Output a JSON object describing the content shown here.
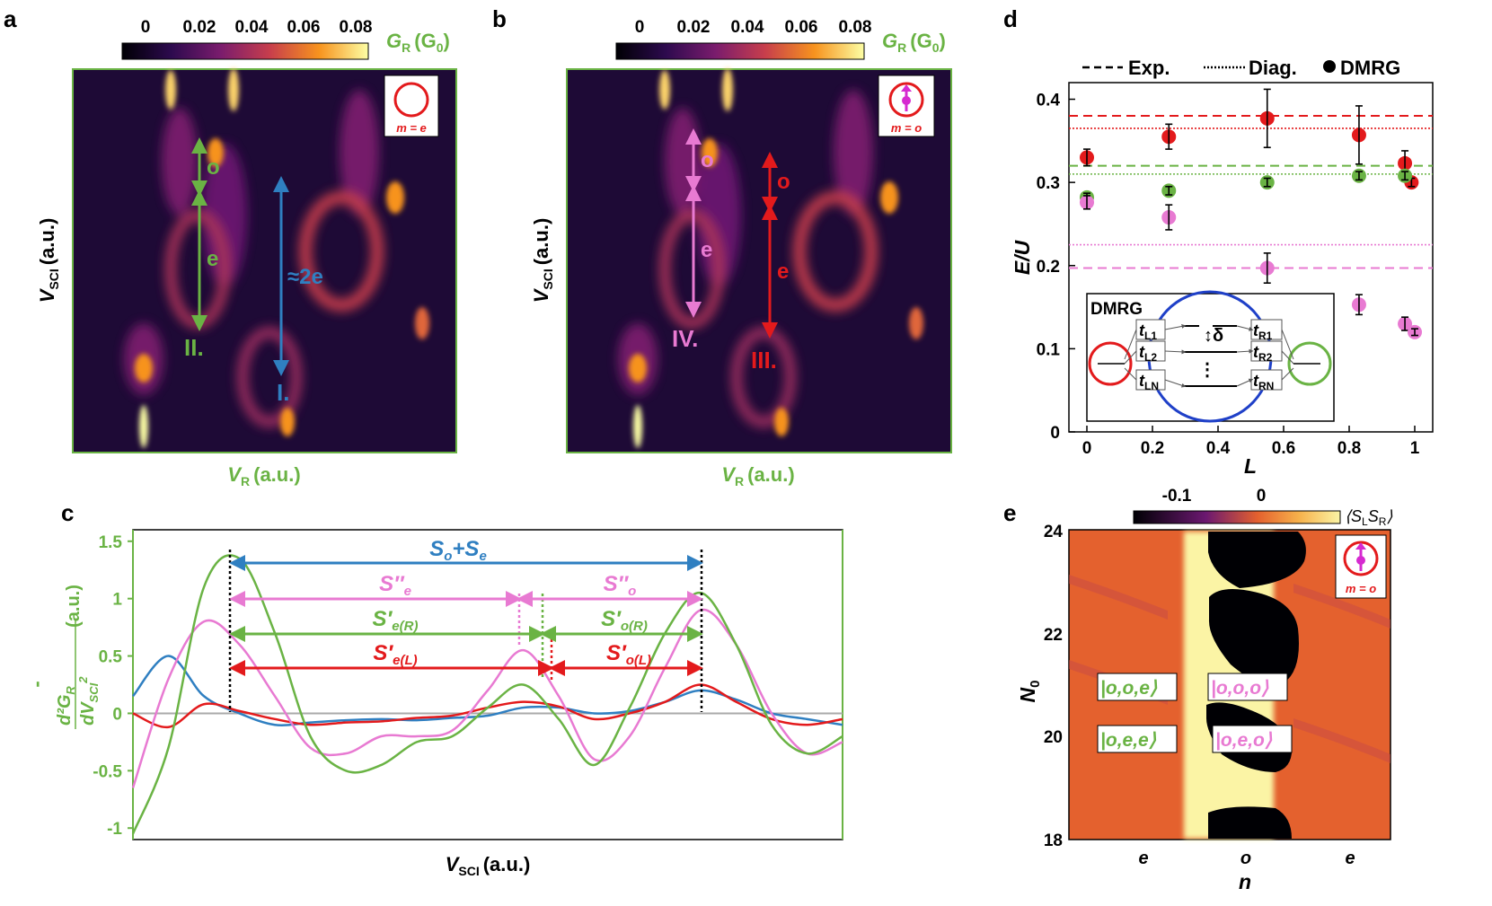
{
  "colors": {
    "green": "#6ab344",
    "blue": "#2f7fc1",
    "pink": "#e87ad2",
    "red": "#e31a1c",
    "magenta": "#d62ad0",
    "orange": "#e4612e",
    "cream": "#fbf4a5"
  },
  "panel_a": {
    "letter": "a",
    "colorbar_ticks": [
      "0",
      "0.02",
      "0.04",
      "0.06",
      "0.08"
    ],
    "colorbar_label": "G",
    "colorbar_label_sub": "R",
    "colorbar_label_unit": "(G",
    "colorbar_label_unit_sub": "0",
    "ylabel": "V",
    "ylabel_sub": "SCI",
    "ylabel_unit": "(a.u.)",
    "xlabel": "V",
    "xlabel_sub": "R",
    "xlabel_unit": "(a.u.)",
    "inset_label": "m = e",
    "ann_o": "o",
    "ann_e": "e",
    "ann_2e": "≈2e",
    "ann_II": "II.",
    "ann_I": "I."
  },
  "panel_b": {
    "letter": "b",
    "colorbar_ticks": [
      "0",
      "0.02",
      "0.04",
      "0.06",
      "0.08"
    ],
    "ylabel": "V",
    "ylabel_sub": "SCI",
    "ylabel_unit": "(a.u.)",
    "xlabel": "V",
    "xlabel_sub": "R",
    "xlabel_unit": "(a.u.)",
    "inset_label": "m = o",
    "ann_o_pink": "o",
    "ann_e_pink": "e",
    "ann_o_red": "o",
    "ann_e_red": "e",
    "ann_IV": "IV.",
    "ann_III": "III."
  },
  "panel_c": {
    "letter": "c",
    "xlabel": "V",
    "xlabel_sub": "SCI",
    "xlabel_unit": "(a.u.)",
    "ylabel_top": "d²G",
    "ylabel_top_sub": "R",
    "ylabel_bottom": "dV",
    "ylabel_bottom_sub": "SCI",
    "ylabel_bottom_sup": "2",
    "ylabel_unit": "(a.u.)",
    "ylabel_minus": "-",
    "yticks": [
      "1.5",
      "1",
      "0.5",
      "0",
      "-0.5",
      "-1"
    ],
    "ann_so_se": "S",
    "ann_so_se_a": "o",
    "ann_so_se_b": "+S",
    "ann_so_se_c": "e",
    "ann_spp_e": "S″",
    "ann_spp_e_sub": "e",
    "ann_spp_o": "S″",
    "ann_spp_o_sub": "o",
    "ann_sp_eR": "S′",
    "ann_sp_eR_sub": "e(R)",
    "ann_sp_oR": "S′",
    "ann_sp_oR_sub": "o(R)",
    "ann_sp_eL": "S′",
    "ann_sp_eL_sub": "e(L)",
    "ann_sp_oL": "S′",
    "ann_sp_oL_sub": "o(L)"
  },
  "panel_d": {
    "letter": "d",
    "legend_exp": "Exp.",
    "legend_diag": "Diag.",
    "legend_dmrg": "DMRG",
    "ylabel": "E/U",
    "xlabel": "L",
    "inset_title": "DMRG",
    "inset_delta": "δ",
    "inset_tL1": "t",
    "inset_tL1_sub": "L1",
    "inset_tL2": "t",
    "inset_tL2_sub": "L2",
    "inset_tLN": "t",
    "inset_tLN_sub": "LN",
    "inset_tR1": "t",
    "inset_tR1_sub": "R1",
    "inset_tR2": "t",
    "inset_tR2_sub": "R2",
    "inset_tRN": "t",
    "inset_tRN_sub": "RN"
  },
  "panel_e": {
    "letter": "e",
    "colorbar_ticks": [
      "-0.1",
      "0"
    ],
    "colorbar_label": "⟨S",
    "colorbar_label_a": "L",
    "colorbar_label_b": "S",
    "colorbar_label_c": "R",
    "colorbar_label_d": "⟩",
    "ylabel": "N",
    "ylabel_sub": "0",
    "xlabel": "n",
    "xticks": [
      "e",
      "o",
      "e"
    ],
    "yticks": [
      "24",
      "22",
      "20",
      "18"
    ],
    "inset_label": "m = o",
    "state_ooe": "|o,o,e⟩",
    "state_ooo": "|o,o,o⟩",
    "state_oee": "|o,e,e⟩",
    "state_oeo": "|o,e,o⟩"
  },
  "chart_data": [
    {
      "panel": "c",
      "type": "line",
      "ylim": [
        -1.1,
        1.6
      ],
      "yticks": [
        1.5,
        1,
        0.5,
        0,
        -0.5,
        -1
      ],
      "x": [
        0,
        0.05,
        0.1,
        0.15,
        0.2,
        0.25,
        0.3,
        0.35,
        0.4,
        0.45,
        0.5,
        0.55,
        0.6,
        0.65,
        0.7,
        0.75,
        0.8,
        0.85,
        0.9,
        0.95,
        1
      ],
      "series": [
        {
          "color": "green",
          "values": [
            -1.05,
            -0.3,
            1.1,
            1.35,
            0.7,
            -0.2,
            -0.5,
            -0.45,
            -0.25,
            -0.2,
            0.05,
            0.25,
            -0.05,
            -0.45,
            0.05,
            0.7,
            1.05,
            0.6,
            -0.1,
            -0.35,
            -0.2
          ]
        },
        {
          "color": "pink",
          "values": [
            -0.65,
            0.3,
            0.8,
            0.6,
            0.15,
            -0.3,
            -0.35,
            -0.2,
            -0.2,
            -0.15,
            0.2,
            0.55,
            0.15,
            -0.4,
            -0.2,
            0.4,
            0.9,
            0.6,
            0.0,
            -0.35,
            -0.25
          ]
        },
        {
          "color": "blue",
          "values": [
            0.15,
            0.5,
            0.15,
            0.0,
            -0.1,
            -0.08,
            -0.06,
            -0.05,
            -0.06,
            -0.04,
            -0.02,
            0.05,
            0.05,
            0.0,
            0.02,
            0.1,
            0.2,
            0.12,
            0.0,
            -0.05,
            -0.1
          ]
        },
        {
          "color": "red",
          "values": [
            0.0,
            -0.12,
            0.08,
            0.02,
            -0.05,
            -0.1,
            -0.08,
            -0.07,
            -0.04,
            -0.02,
            0.05,
            0.1,
            0.06,
            -0.05,
            0.0,
            0.1,
            0.25,
            0.1,
            -0.05,
            -0.1,
            -0.05
          ]
        },
        {
          "color": "gray",
          "values": [
            0,
            0,
            0,
            0,
            0,
            0,
            0,
            0,
            0,
            0,
            0,
            0,
            0,
            0,
            0,
            0,
            0,
            0,
            0,
            0,
            0
          ]
        }
      ]
    },
    {
      "panel": "d",
      "type": "scatter",
      "xlim": [
        0,
        1
      ],
      "ylim": [
        0,
        0.42
      ],
      "xticks": [
        0,
        0.2,
        0.4,
        0.6,
        0.8,
        1
      ],
      "yticks": [
        0,
        0.1,
        0.2,
        0.3,
        0.4
      ],
      "hlines": [
        {
          "color": "red",
          "style": "dashed",
          "y": 0.38
        },
        {
          "color": "red",
          "style": "dotted",
          "y": 0.365
        },
        {
          "color": "green",
          "style": "dashed",
          "y": 0.32
        },
        {
          "color": "green",
          "style": "dotted",
          "y": 0.31
        },
        {
          "color": "pink",
          "style": "dotted",
          "y": 0.225
        },
        {
          "color": "pink",
          "style": "dashed",
          "y": 0.197
        }
      ],
      "series": [
        {
          "color": "red",
          "x": [
            0,
            0.25,
            0.55,
            0.83,
            0.97,
            0.99
          ],
          "y": [
            0.33,
            0.355,
            0.377,
            0.357,
            0.323,
            0.3
          ],
          "err": [
            0.01,
            0.015,
            0.035,
            0.035,
            0.015,
            0.005
          ]
        },
        {
          "color": "green",
          "x": [
            0,
            0.25,
            0.55,
            0.83,
            0.97
          ],
          "y": [
            0.282,
            0.29,
            0.3,
            0.308,
            0.308
          ],
          "err": [
            0.005,
            0.005,
            0.005,
            0.005,
            0.005
          ]
        },
        {
          "color": "pink",
          "x": [
            0,
            0.25,
            0.55,
            0.83,
            0.97,
            1.0
          ],
          "y": [
            0.276,
            0.258,
            0.197,
            0.153,
            0.13,
            0.12
          ],
          "err": [
            0.008,
            0.015,
            0.018,
            0.012,
            0.008,
            0.004
          ]
        }
      ]
    }
  ]
}
